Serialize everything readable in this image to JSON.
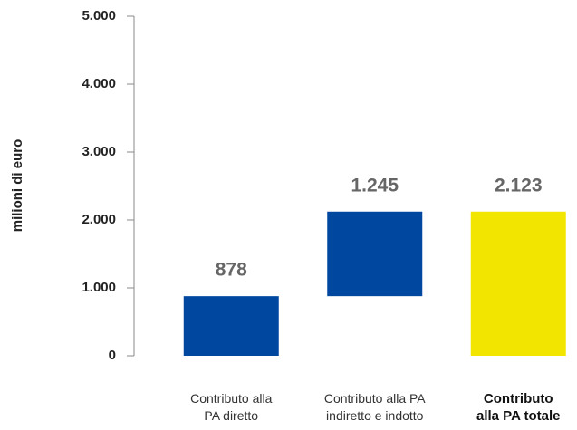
{
  "chart_data": {
    "type": "waterfall",
    "y_label": "milioni di euro",
    "categories": [
      "Contributo alla\nPA diretto",
      "Contributo alla PA\nindiretto e indotto",
      "Contributo\nalla PA totale"
    ],
    "values": [
      878,
      1245,
      2123
    ],
    "value_labels": [
      "878",
      "1.245",
      "2.123"
    ],
    "measure": [
      "relative",
      "relative",
      "total"
    ],
    "colors": [
      "#0047a0",
      "#0047a0",
      "#f2e500"
    ],
    "ylim": [
      0,
      5000
    ],
    "yticks": [
      0,
      {
        "value": 1000,
        "label": "1.000"
      },
      {
        "value": 2000,
        "label": "2.000"
      },
      {
        "value": 3000,
        "label": "3.000"
      },
      {
        "value": 4000,
        "label": "4.000"
      },
      {
        "value": 5000,
        "label": "5.000"
      }
    ]
  }
}
